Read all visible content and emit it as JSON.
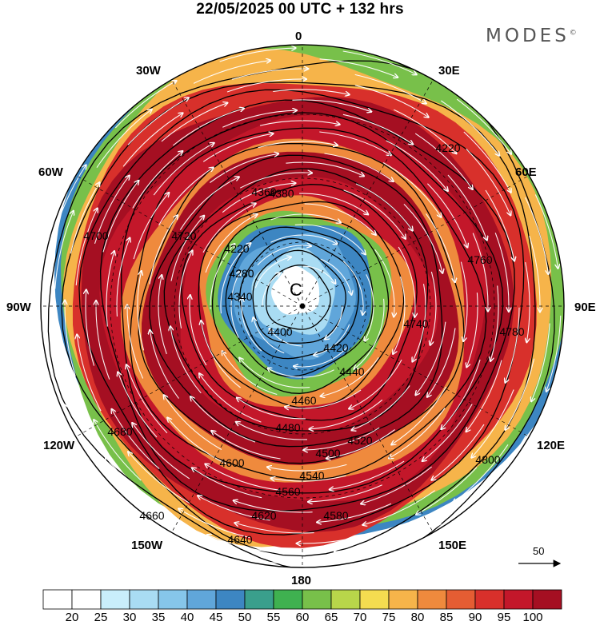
{
  "header": {
    "title": "22/05/2025  00 UTC  + 132 hrs",
    "brand": "MODES",
    "brand_mark": "©"
  },
  "longitude_labels": [
    "0",
    "30E",
    "60E",
    "90E",
    "120E",
    "150E",
    "180",
    "150W",
    "120W",
    "90W",
    "60W",
    "30W"
  ],
  "map": {
    "projection": "north-polar-stereographic",
    "center_marker": "north-pole-dot",
    "fill_field": "wind speed",
    "low_center_label": "C",
    "contour_labels": [
      "4220",
      "4280",
      "4340",
      "4360",
      "4380",
      "4400",
      "4420",
      "4440",
      "4460",
      "4480",
      "4500",
      "4520",
      "4540",
      "4560",
      "4580",
      "4600",
      "4620",
      "4640",
      "4660",
      "4680",
      "4700",
      "4720",
      "4740",
      "4760",
      "4780",
      "4800"
    ],
    "streamlines": "white arrows, cyclonic flow around pole"
  },
  "vector_scale": {
    "label": "50"
  },
  "colorbar": {
    "ticks": [
      "20",
      "25",
      "30",
      "35",
      "40",
      "45",
      "50",
      "55",
      "60",
      "65",
      "70",
      "75",
      "80",
      "85",
      "90",
      "95",
      "100"
    ],
    "colors": [
      "#ffffff",
      "#c9eefb",
      "#a9dcf3",
      "#86c6ea",
      "#60a6da",
      "#3d86c2",
      "#3a9f8c",
      "#3fb150",
      "#78c04a",
      "#b8d64a",
      "#f4dc50",
      "#f6b44a",
      "#ef8a3d",
      "#e55d33",
      "#d8302b",
      "#c3172a",
      "#a50f22"
    ]
  }
}
